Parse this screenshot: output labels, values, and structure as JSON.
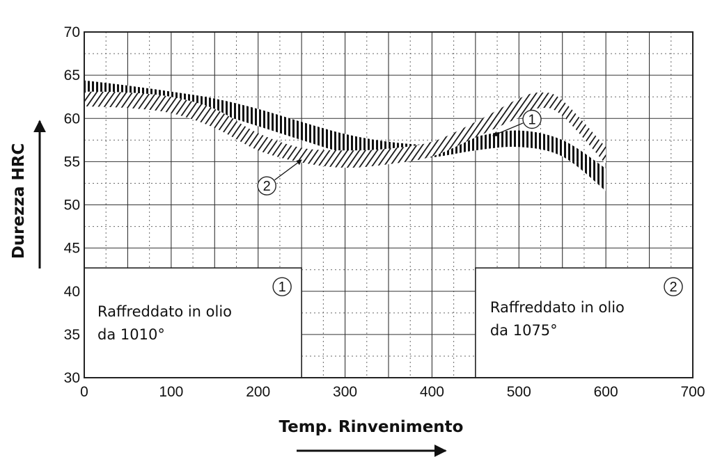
{
  "chart_data": {
    "type": "area",
    "xlabel": "Temp. Rinvenimento",
    "ylabel": "Durezza HRC",
    "xlim": [
      0,
      700
    ],
    "ylim": [
      30,
      70
    ],
    "xticks": [
      0,
      100,
      200,
      300,
      400,
      500,
      600,
      700
    ],
    "yticks": [
      30,
      35,
      40,
      45,
      50,
      55,
      60,
      65,
      70
    ],
    "grid": true,
    "series": [
      {
        "marker": "1",
        "x": [
          0,
          50,
          100,
          150,
          200,
          250,
          300,
          350,
          400,
          450,
          500,
          550,
          600
        ],
        "upper": [
          64.4,
          63.8,
          63.1,
          62.3,
          61.1,
          59.6,
          58.2,
          57.3,
          57.0,
          57.9,
          58.6,
          57.5,
          54.2
        ],
        "lower": [
          62.6,
          62.3,
          61.5,
          60.6,
          59.1,
          57.5,
          56.0,
          55.4,
          55.5,
          56.3,
          56.7,
          55.6,
          51.6
        ]
      },
      {
        "marker": "2",
        "x": [
          0,
          50,
          100,
          150,
          200,
          250,
          300,
          350,
          400,
          450,
          500,
          525,
          550,
          600
        ],
        "upper": [
          63.1,
          63.0,
          62.5,
          61.1,
          58.3,
          56.6,
          56.3,
          56.5,
          57.3,
          59.6,
          62.3,
          63.0,
          62.1,
          56.7
        ],
        "lower": [
          61.4,
          61.2,
          60.6,
          58.9,
          56.3,
          54.9,
          54.3,
          54.7,
          55.6,
          57.8,
          60.1,
          61.2,
          60.3,
          54.7
        ]
      }
    ],
    "markers": [
      {
        "label": "1",
        "cx": 515,
        "cy": 59.9,
        "arrow_to": [
          470,
          58.0
        ]
      },
      {
        "label": "2",
        "cx": 210,
        "cy": 52.2,
        "arrow_to": [
          250,
          55.2
        ]
      }
    ],
    "boxes": [
      {
        "marker": "1",
        "x0": 0,
        "x1": 250,
        "y0": 30,
        "y1": 42.7,
        "lines": [
          "Raffreddato in olio",
          "da 1010°"
        ]
      },
      {
        "marker": "2",
        "x0": 450,
        "x1": 700,
        "y0": 30,
        "y1": 42.7,
        "lines": [
          "Raffreddato in olio",
          "da 1075°"
        ]
      }
    ]
  }
}
